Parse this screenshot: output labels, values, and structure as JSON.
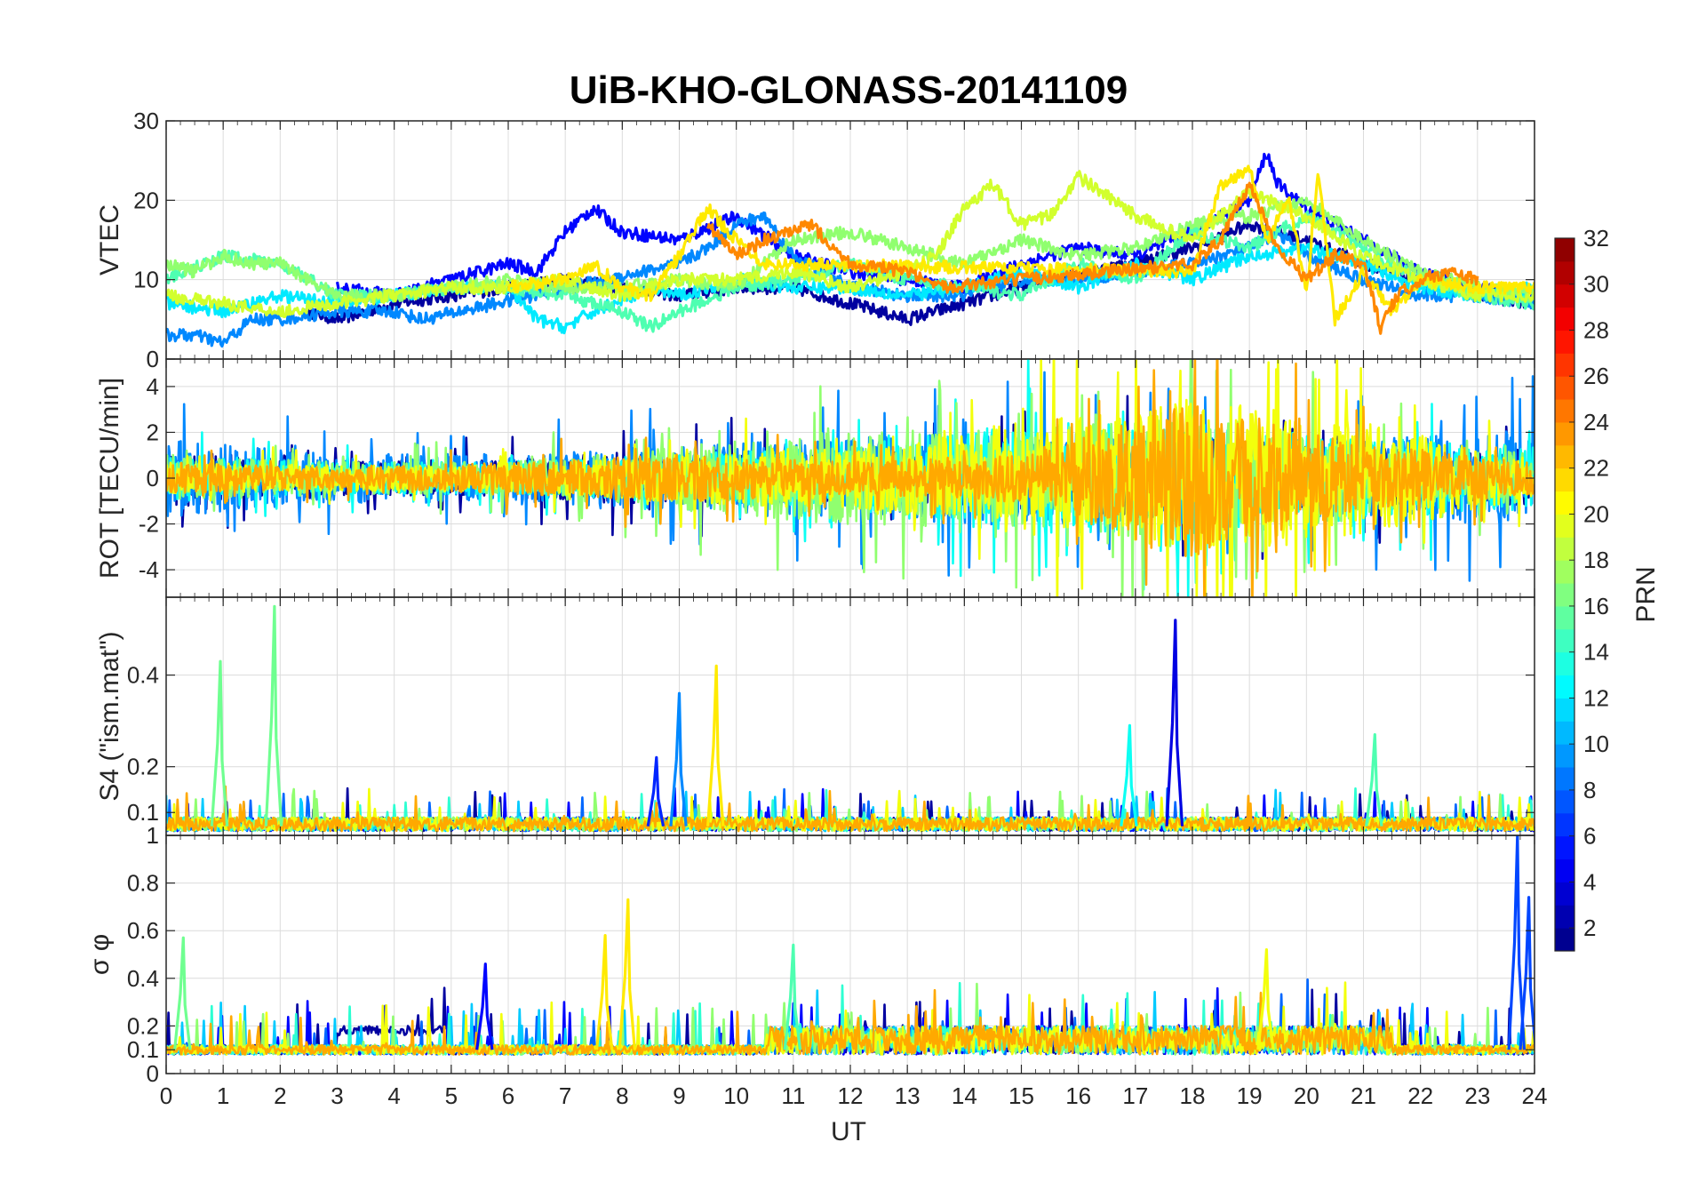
{
  "chart_data": {
    "type": "line",
    "title": "UiB-KHO-GLONASS-20141109",
    "xlabel": "UT",
    "xlim": [
      0,
      24
    ],
    "x_ticks": [
      0,
      1,
      2,
      3,
      4,
      5,
      6,
      7,
      8,
      9,
      10,
      11,
      12,
      13,
      14,
      15,
      16,
      17,
      18,
      19,
      20,
      21,
      22,
      23,
      24
    ],
    "grid": true,
    "colorbar": {
      "label": "PRN",
      "range": [
        1,
        32
      ],
      "ticks": [
        2,
        4,
        6,
        8,
        10,
        12,
        14,
        16,
        18,
        20,
        22,
        24,
        26,
        28,
        30,
        32
      ],
      "colormap": "jet"
    },
    "panels": [
      {
        "ylabel": "VTEC",
        "ylim": [
          0,
          30
        ],
        "y_ticks": [
          0,
          10,
          20,
          30
        ],
        "series": [
          {
            "prn": 2,
            "x": [
              2.5,
              3,
              4,
              5,
              6,
              7,
              8,
              9,
              10,
              11,
              12,
              12.5,
              13,
              13.5,
              14,
              15,
              16,
              17,
              18,
              19,
              19.5,
              20,
              21,
              22,
              23,
              24
            ],
            "values": [
              6,
              5,
              7,
              8,
              9,
              10,
              9,
              8,
              9,
              9,
              7,
              6,
              5,
              6,
              7,
              9,
              11,
              12,
              14,
              17,
              16,
              15,
              12,
              10,
              8,
              7
            ]
          },
          {
            "prn": 5,
            "x": [
              3,
              4,
              5,
              6,
              6.5,
              7,
              7.5,
              8,
              9,
              10,
              11,
              12,
              13,
              14,
              15,
              16,
              17,
              18,
              18.5,
              19,
              19.3,
              19.5,
              20,
              21,
              22,
              23,
              24
            ],
            "values": [
              9,
              8,
              10,
              12,
              11,
              16,
              19,
              16,
              15,
              18,
              13,
              11,
              10,
              9,
              12,
              14,
              13,
              16,
              18,
              20,
              26,
              22,
              19,
              15,
              11,
              9,
              8
            ]
          },
          {
            "prn": 9,
            "x": [
              0,
              0.5,
              1,
              1.5,
              2,
              3,
              4,
              4.5,
              9,
              9.5,
              10,
              10.5,
              11,
              11.5,
              12,
              13,
              14,
              15,
              16,
              17,
              18,
              19,
              19.5,
              20,
              21,
              22,
              23,
              24
            ],
            "values": [
              3,
              3,
              2,
              5,
              5,
              6,
              6,
              5,
              12,
              14,
              17,
              18,
              13,
              11,
              9,
              8,
              8,
              10,
              10,
              11,
              12,
              14,
              16,
              13,
              10,
              8,
              8,
              7
            ]
          },
          {
            "prn": 12,
            "x": [
              0,
              1,
              2,
              3,
              4,
              5,
              6,
              6.5,
              7,
              7.5,
              8.5,
              9,
              10,
              11,
              12,
              13,
              14,
              15,
              16,
              17,
              18,
              19,
              20,
              21,
              22,
              23,
              24
            ],
            "values": [
              7,
              6,
              8,
              7,
              8,
              9,
              9,
              5,
              4,
              6,
              9,
              8,
              10,
              9,
              9,
              8,
              9,
              11,
              9,
              12,
              10,
              13,
              14,
              12,
              9,
              8,
              9
            ]
          },
          {
            "prn": 15,
            "x": [
              0,
              1,
              2,
              3,
              4,
              5,
              6,
              7,
              8,
              8.5,
              9,
              10,
              11,
              12,
              13,
              14,
              15,
              16,
              17,
              18,
              19,
              20,
              21,
              22,
              23,
              24
            ],
            "values": [
              10,
              13,
              12,
              8,
              8,
              9,
              9,
              8,
              6,
              4,
              6,
              9,
              10,
              12,
              10,
              9,
              8,
              12,
              10,
              16,
              14,
              18,
              14,
              10,
              8,
              7
            ]
          },
          {
            "prn": 17,
            "x": [
              0,
              0.5,
              1,
              1.5,
              2,
              3,
              4,
              5,
              6,
              7,
              8,
              9,
              10,
              11,
              12,
              13,
              14,
              15,
              16,
              17,
              18,
              19,
              20,
              21,
              22,
              23,
              24
            ],
            "values": [
              12,
              11,
              13,
              12,
              12,
              8,
              8,
              9,
              10,
              9,
              9,
              10,
              9,
              15,
              16,
              14,
              12,
              15,
              13,
              14,
              17,
              18,
              20,
              15,
              11,
              9,
              8
            ]
          },
          {
            "prn": 19,
            "x": [
              0,
              1,
              2,
              3,
              4,
              5,
              6,
              7,
              8,
              9,
              10,
              11,
              12,
              13,
              13.5,
              14,
              14.5,
              15,
              15.5,
              16,
              17,
              18,
              19,
              20,
              21,
              22,
              23,
              24
            ],
            "values": [
              8,
              7,
              6,
              7,
              8,
              9,
              9,
              10,
              8,
              10,
              10,
              11,
              9,
              11,
              13,
              19,
              22,
              17,
              18,
              23,
              18,
              15,
              21,
              18,
              13,
              10,
              8,
              8
            ]
          },
          {
            "prn": 21,
            "x": [
              6,
              7,
              7.5,
              8,
              8.5,
              9,
              9.5,
              10,
              10.5,
              18,
              18.5,
              19,
              19.3,
              19.7,
              20,
              20.2,
              20.5,
              21,
              21.5,
              22,
              23,
              24
            ],
            "values": [
              9,
              10,
              12,
              9,
              8,
              13,
              19,
              15,
              12,
              11,
              22,
              24,
              15,
              20,
              8,
              24,
              5,
              11,
              6,
              10,
              9,
              9
            ]
          },
          {
            "prn": 24,
            "x": [
              9.5,
              10,
              10.5,
              11,
              11.3,
              12,
              13,
              13.5,
              18,
              18.5,
              19,
              19.5,
              20,
              20.5,
              21,
              21.3,
              21.6,
              22,
              22.5,
              23
            ],
            "values": [
              17,
              13,
              15,
              16,
              17,
              12,
              11,
              9,
              12,
              15,
              22,
              14,
              10,
              13,
              12,
              4,
              8,
              10,
              11,
              10
            ]
          }
        ]
      },
      {
        "ylabel": "ROT [TECU/min]",
        "ylim": [
          -5.2,
          5.2
        ],
        "y_ticks": [
          -4,
          -2,
          0,
          2,
          4
        ],
        "series": [
          {
            "prn": 2,
            "envelope": [
              [
                0,
                1.8
              ],
              [
                3,
                1.0
              ],
              [
                6,
                1.2
              ],
              [
                9,
                1.8
              ],
              [
                12,
                1.5
              ],
              [
                15,
                2.0
              ],
              [
                18,
                2.5
              ],
              [
                21,
                2.0
              ],
              [
                24,
                1.8
              ]
            ]
          },
          {
            "prn": 9,
            "envelope": [
              [
                0,
                2.5
              ],
              [
                3,
                1.5
              ],
              [
                6,
                1.5
              ],
              [
                9,
                2.0
              ],
              [
                12,
                2.5
              ],
              [
                15,
                3.0
              ],
              [
                18,
                2.5
              ],
              [
                21,
                2.5
              ],
              [
                24,
                3.0
              ]
            ]
          },
          {
            "prn": 13,
            "envelope": [
              [
                0,
                1.5
              ],
              [
                3,
                1.0
              ],
              [
                6,
                1.0
              ],
              [
                9,
                1.5
              ],
              [
                12,
                2.0
              ],
              [
                15,
                3.5
              ],
              [
                18,
                3.5
              ],
              [
                21,
                2.5
              ],
              [
                24,
                2.0
              ]
            ]
          },
          {
            "prn": 17,
            "envelope": [
              [
                0,
                1.5
              ],
              [
                3,
                1.0
              ],
              [
                6,
                1.0
              ],
              [
                9,
                2.0
              ],
              [
                12,
                3.0
              ],
              [
                15,
                3.0
              ],
              [
                18,
                4.0
              ],
              [
                21,
                2.5
              ],
              [
                24,
                1.5
              ]
            ]
          },
          {
            "prn": 20,
            "envelope": [
              [
                0,
                1.0
              ],
              [
                3,
                0.8
              ],
              [
                6,
                0.8
              ],
              [
                9,
                1.5
              ],
              [
                12,
                2.0
              ],
              [
                15,
                3.5
              ],
              [
                18,
                5.0
              ],
              [
                21,
                3.5
              ],
              [
                24,
                1.2
              ]
            ]
          },
          {
            "prn": 23,
            "envelope": [
              [
                0,
                1.0
              ],
              [
                3,
                0.6
              ],
              [
                6,
                1.0
              ],
              [
                9,
                1.5
              ],
              [
                12,
                1.0
              ],
              [
                15,
                1.5
              ],
              [
                18,
                5.0
              ],
              [
                21,
                2.0
              ],
              [
                24,
                1.0
              ]
            ]
          }
        ]
      },
      {
        "ylabel": "S4 (\"ism.mat\")",
        "ylim": [
          0.05,
          0.57
        ],
        "y_ticks": [
          0.1,
          0.2,
          0.4
        ],
        "baseline": 0.07,
        "spikes": [
          {
            "prn": 16,
            "x": 0.95,
            "value": 0.43
          },
          {
            "prn": 16,
            "x": 1.9,
            "value": 0.55
          },
          {
            "prn": 9,
            "x": 9.0,
            "value": 0.36
          },
          {
            "prn": 21,
            "x": 9.65,
            "value": 0.42
          },
          {
            "prn": 13,
            "x": 16.9,
            "value": 0.29
          },
          {
            "prn": 4,
            "x": 17.7,
            "value": 0.52
          },
          {
            "prn": 15,
            "x": 21.2,
            "value": 0.27
          },
          {
            "prn": 6,
            "x": 8.6,
            "value": 0.22
          }
        ]
      },
      {
        "ylabel": "σ φ",
        "ylim": [
          0,
          1
        ],
        "y_ticks": [
          0,
          0.1,
          0.2,
          0.4,
          0.6,
          0.8,
          1
        ],
        "baseline": 0.1,
        "spikes": [
          {
            "prn": 16,
            "x": 0.3,
            "value": 0.57
          },
          {
            "prn": 5,
            "x": 5.6,
            "value": 0.46
          },
          {
            "prn": 21,
            "x": 7.7,
            "value": 0.58
          },
          {
            "prn": 21,
            "x": 8.1,
            "value": 0.73
          },
          {
            "prn": 7,
            "x": 23.7,
            "value": 1.0
          },
          {
            "prn": 7,
            "x": 23.9,
            "value": 0.74
          },
          {
            "prn": 20,
            "x": 19.3,
            "value": 0.52
          },
          {
            "prn": 15,
            "x": 11.0,
            "value": 0.54
          }
        ]
      }
    ]
  }
}
